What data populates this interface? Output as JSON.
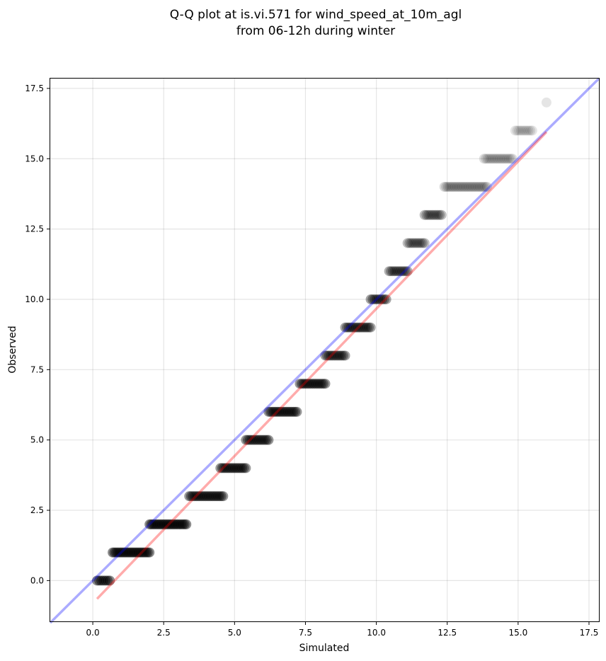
{
  "chart_data": {
    "type": "scatter",
    "title_line1": "Q-Q plot at is.vi.571 for wind_speed_at_10m_agl",
    "title_line2": "from 06-12h during winter",
    "xlabel": "Simulated",
    "ylabel": "Observed",
    "xlim": [
      -1.5,
      17.85
    ],
    "ylim": [
      -1.45,
      17.85
    ],
    "xticks": [
      0.0,
      2.5,
      5.0,
      7.5,
      10.0,
      12.5,
      15.0,
      17.5
    ],
    "yticks": [
      0.0,
      2.5,
      5.0,
      7.5,
      10.0,
      12.5,
      15.0,
      17.5
    ],
    "xtick_labels": [
      "0.0",
      "2.5",
      "5.0",
      "7.5",
      "10.0",
      "12.5",
      "15.0",
      "17.5"
    ],
    "ytick_labels": [
      "0.0",
      "2.5",
      "5.0",
      "7.5",
      "10.0",
      "12.5",
      "15.0",
      "17.5"
    ],
    "grid": true,
    "point_color": "#000000",
    "point_groups": [
      {
        "y": 0,
        "x_min": 0.15,
        "x_max": 0.6,
        "opacity": 0.45
      },
      {
        "y": 1,
        "x_min": 0.7,
        "x_max": 2.0,
        "opacity": 0.45
      },
      {
        "y": 2,
        "x_min": 2.0,
        "x_max": 3.3,
        "opacity": 0.45
      },
      {
        "y": 3,
        "x_min": 3.4,
        "x_max": 4.6,
        "opacity": 0.4
      },
      {
        "y": 4,
        "x_min": 4.5,
        "x_max": 5.4,
        "opacity": 0.4
      },
      {
        "y": 5,
        "x_min": 5.4,
        "x_max": 6.2,
        "opacity": 0.4
      },
      {
        "y": 6,
        "x_min": 6.2,
        "x_max": 7.2,
        "opacity": 0.4
      },
      {
        "y": 7,
        "x_min": 7.3,
        "x_max": 8.2,
        "opacity": 0.4
      },
      {
        "y": 8,
        "x_min": 8.2,
        "x_max": 8.9,
        "opacity": 0.35
      },
      {
        "y": 9,
        "x_min": 8.9,
        "x_max": 9.8,
        "opacity": 0.35
      },
      {
        "y": 10,
        "x_min": 9.8,
        "x_max": 10.35,
        "opacity": 0.35
      },
      {
        "y": 11,
        "x_min": 10.45,
        "x_max": 11.1,
        "opacity": 0.3
      },
      {
        "y": 12,
        "x_min": 11.1,
        "x_max": 11.7,
        "opacity": 0.25
      },
      {
        "y": 13,
        "x_min": 11.7,
        "x_max": 12.3,
        "opacity": 0.25
      },
      {
        "y": 14,
        "x_min": 12.4,
        "x_max": 13.9,
        "opacity": 0.15
      },
      {
        "y": 15,
        "x_min": 13.8,
        "x_max": 14.8,
        "opacity": 0.12
      },
      {
        "y": 16,
        "x_min": 14.9,
        "x_max": 15.5,
        "opacity": 0.1
      },
      {
        "y": 17,
        "x_min": 16.0,
        "x_max": 16.0,
        "opacity": 0.1
      }
    ],
    "reference_line": {
      "color": "#0000ff",
      "opacity": 0.33,
      "from": [
        -1.5,
        -1.5
      ],
      "to": [
        17.85,
        17.85
      ]
    },
    "fit_line": {
      "color": "#ff0000",
      "opacity": 0.33,
      "from": [
        0.15,
        -0.65
      ],
      "to": [
        16.0,
        15.95
      ]
    }
  }
}
